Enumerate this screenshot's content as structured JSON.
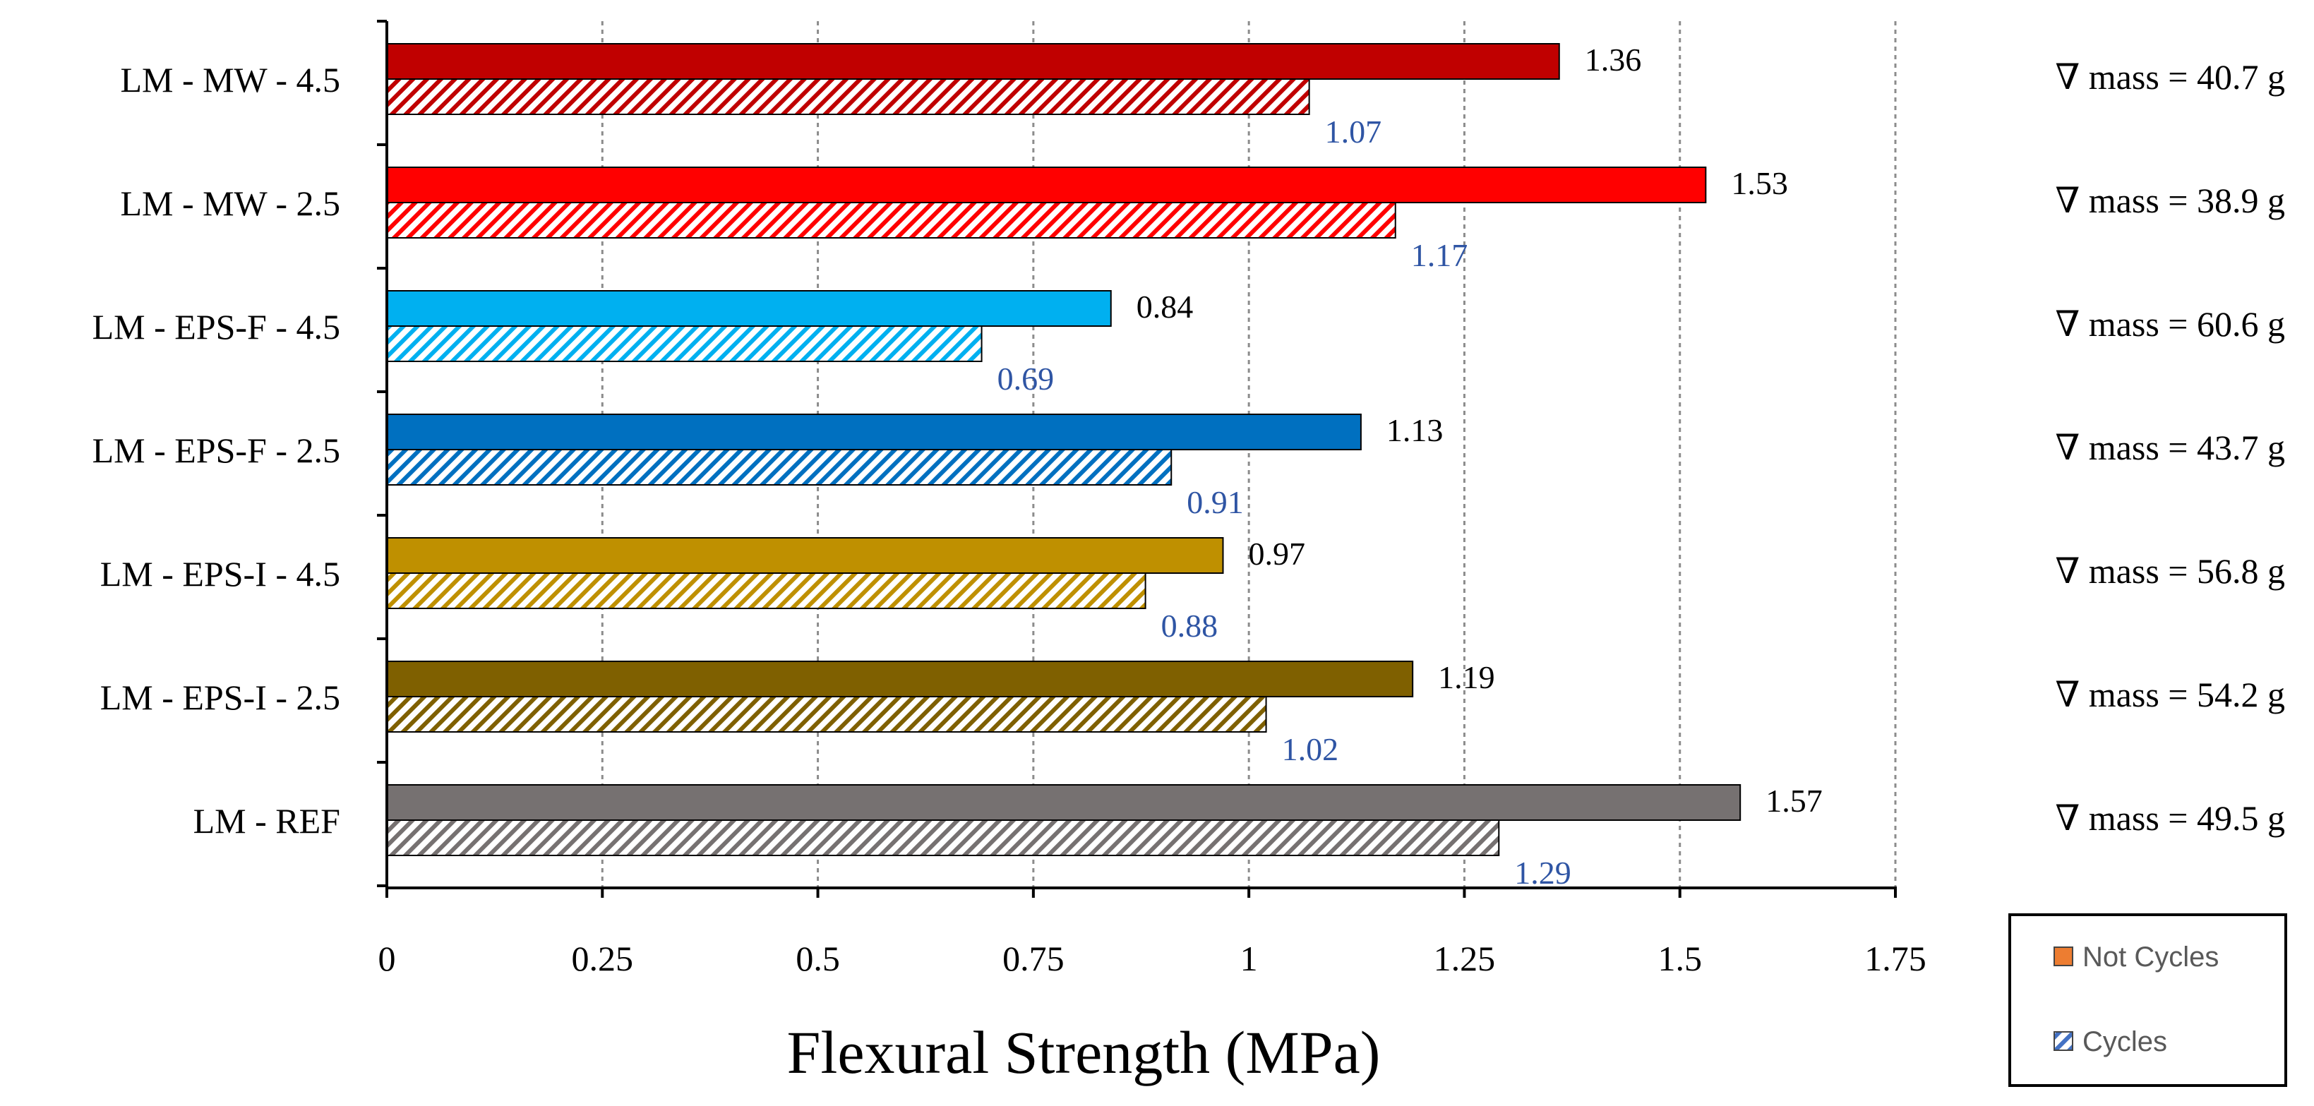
{
  "chart_data": {
    "type": "bar",
    "orientation": "horizontal",
    "title": "",
    "xlabel": "Flexural Strength (MPa)",
    "ylabel": "",
    "xlim": [
      0,
      1.75
    ],
    "xticks": [
      "0",
      "0.25",
      "0.5",
      "0.75",
      "1",
      "1.25",
      "1.5",
      "1.75"
    ],
    "xtick_values": [
      0,
      0.25,
      0.5,
      0.75,
      1,
      1.25,
      1.5,
      1.75
    ],
    "grid": "vertical dashed",
    "categories": [
      "LM - MW - 4.5",
      "LM - MW - 2.5",
      "LM - EPS-F - 4.5",
      "LM - EPS-F - 2.5",
      "LM - EPS-I - 4.5",
      "LM - EPS-I - 2.5",
      "LM - REF"
    ],
    "category_colors": [
      "#c00000",
      "#ff0000",
      "#00b0f0",
      "#0070c0",
      "#bf9000",
      "#7f6000",
      "#767171"
    ],
    "series": [
      {
        "name": "Not Cycles",
        "pattern": "solid",
        "values": [
          1.36,
          1.53,
          0.84,
          1.13,
          0.97,
          1.19,
          1.57
        ],
        "labels": [
          "1.36",
          "1.53",
          "0.84",
          "1.13",
          "0.97",
          "1.19",
          "1.57"
        ]
      },
      {
        "name": "Cycles",
        "pattern": "hatched",
        "values": [
          1.07,
          1.17,
          0.69,
          0.91,
          0.88,
          1.02,
          1.29
        ],
        "labels": [
          "1.07",
          "1.17",
          "0.69",
          "0.91",
          "0.88",
          "1.02",
          "1.29"
        ]
      }
    ],
    "annotations": [
      "∇ mass = 40.7 g",
      "∇ mass = 38.9 g",
      "∇ mass = 60.6 g",
      "∇ mass = 43.7 g",
      "∇ mass = 56.8 g",
      "∇ mass = 54.2 g",
      "∇ mass = 49.5 g"
    ],
    "legend": {
      "placement": "bottom-right",
      "entries": [
        {
          "label": "Not Cycles",
          "swatch": "solid",
          "color": "#ed7d31"
        },
        {
          "label": "Cycles",
          "swatch": "hatched",
          "color": "#4472c4"
        }
      ]
    },
    "value_label_colors": {
      "not_cycles": "#000000",
      "cycles": "#2f55a4"
    }
  }
}
